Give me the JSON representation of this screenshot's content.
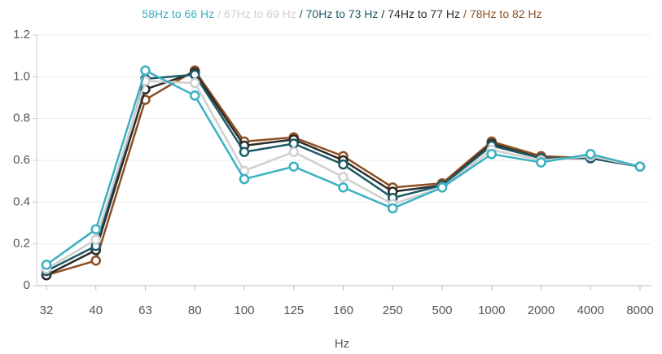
{
  "chart_data": {
    "type": "line",
    "x_label": "Hz",
    "legend_separator": "/",
    "categories": [
      "32",
      "40",
      "63",
      "80",
      "100",
      "125",
      "160",
      "250",
      "500",
      "1000",
      "2000",
      "4000",
      "8000"
    ],
    "series": [
      {
        "name": "58Hz to 66 Hz",
        "color": "#3bb0c1",
        "values": [
          0.1,
          0.27,
          1.03,
          0.91,
          0.51,
          0.57,
          0.47,
          0.37,
          0.47,
          0.63,
          0.59,
          0.63,
          0.57
        ]
      },
      {
        "name": "67Hz to 69 Hz",
        "color": "#cfcfcf",
        "values": [
          0.08,
          0.22,
          0.98,
          0.97,
          0.55,
          0.64,
          0.52,
          0.39,
          0.47,
          0.65,
          0.6,
          0.62,
          0.57
        ]
      },
      {
        "name": "70Hz to 73 Hz",
        "color": "#1d5a66",
        "values": [
          0.07,
          0.19,
          0.99,
          1.01,
          0.64,
          0.68,
          0.58,
          0.42,
          0.48,
          0.67,
          0.61,
          0.61,
          0.57
        ]
      },
      {
        "name": "74Hz to 77 Hz",
        "color": "#2b2b2b",
        "values": [
          0.05,
          0.17,
          0.94,
          1.02,
          0.67,
          0.7,
          0.6,
          0.45,
          0.48,
          0.68,
          0.61,
          0.61,
          0.57
        ]
      },
      {
        "name": "78Hz to 82 Hz",
        "color": "#8c4f22",
        "values": [
          0.05,
          0.12,
          0.89,
          1.03,
          0.69,
          0.71,
          0.62,
          0.47,
          0.49,
          0.69,
          0.62,
          0.61,
          0.57
        ]
      }
    ],
    "ylim": [
      0,
      1.2
    ],
    "yticks": [
      0,
      0.2,
      0.4,
      0.6,
      0.8,
      {
        "value": 1,
        "label": "1.0"
      },
      1.2
    ],
    "grid": true
  }
}
